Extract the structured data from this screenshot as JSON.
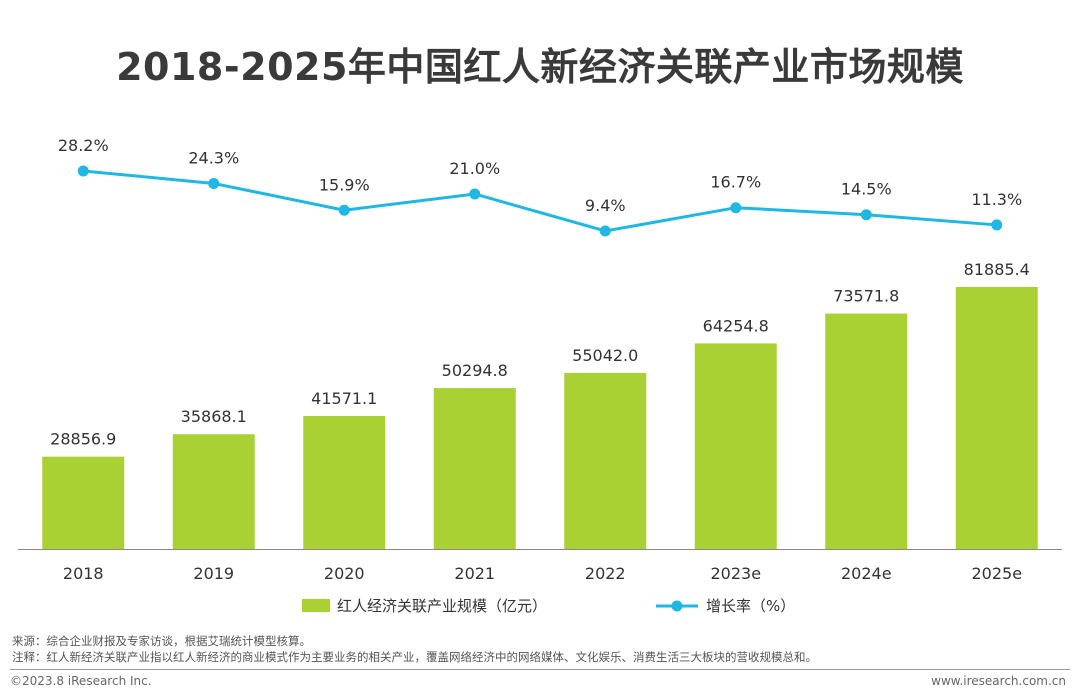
{
  "title": "2018-2025年中国红人新经济关联产业市场规模",
  "chart_data": {
    "type": "bar+line",
    "categories": [
      "2018",
      "2019",
      "2020",
      "2021",
      "2022",
      "2023e",
      "2024e",
      "2025e"
    ],
    "series": [
      {
        "name": "红人经济关联产业规模（亿元）",
        "type": "bar",
        "color": "#a9d134",
        "values": [
          28856.9,
          35868.1,
          41571.1,
          50294.8,
          55042.0,
          64254.8,
          73571.8,
          81885.4
        ],
        "labels": [
          "28856.9",
          "35868.1",
          "41571.1",
          "50294.8",
          "55042.0",
          "64254.8",
          "73571.8",
          "81885.4"
        ]
      },
      {
        "name": "增长率（%）",
        "type": "line",
        "color": "#1fb8e4",
        "values": [
          28.2,
          24.3,
          15.9,
          21.0,
          9.4,
          16.7,
          14.5,
          11.3
        ],
        "labels": [
          "28.2%",
          "24.3%",
          "15.9%",
          "21.0%",
          "9.4%",
          "16.7%",
          "14.5%",
          "11.3%"
        ]
      }
    ],
    "legend_position": "bottom"
  },
  "notes": {
    "source": "来源：综合企业财报及专家访谈，根据艾瑞统计模型核算。",
    "note": "注释：红人新经济关联产业指以红人新经济的商业模式作为主要业务的相关产业，覆盖网络经济中的网络媒体、文化娱乐、消费生活三大板块的营收规模总和。"
  },
  "footer": {
    "copyright": "©2023.8 iResearch Inc.",
    "website": "www.iresearch.com.cn"
  }
}
